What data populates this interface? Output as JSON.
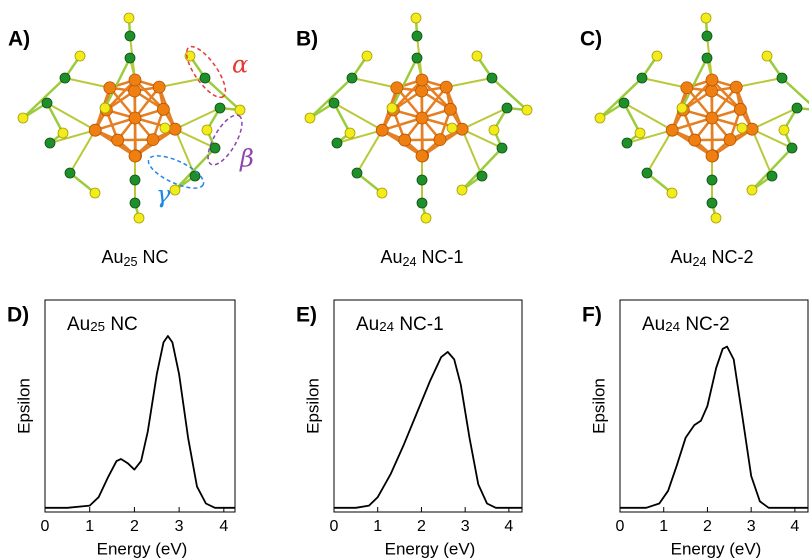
{
  "panels": [
    {
      "label": "A)",
      "caption": {
        "base": "Au",
        "sub": "25",
        "rest": " NC"
      }
    },
    {
      "label": "B)",
      "caption": {
        "base": "Au",
        "sub": "24",
        "rest": " NC-1"
      }
    },
    {
      "label": "C)",
      "caption": {
        "base": "Au",
        "sub": "24",
        "rest": " NC-2"
      }
    }
  ],
  "annotations": [
    "α",
    "β",
    "γ"
  ],
  "chart_data": [
    {
      "type": "line",
      "label": "D)",
      "title": {
        "base": "Au",
        "sub": "25",
        "rest": " NC"
      },
      "xlabel": "Energy (eV)",
      "ylabel": "Epsilon",
      "xlim": [
        0,
        4.25
      ],
      "xticks": [
        0,
        1,
        2,
        3,
        4
      ],
      "ylim": [
        0,
        1
      ],
      "color": "#000000",
      "x": [
        0,
        0.5,
        1.0,
        1.2,
        1.4,
        1.6,
        1.7,
        1.85,
        2.0,
        2.15,
        2.3,
        2.5,
        2.65,
        2.75,
        2.85,
        3.0,
        3.2,
        3.4,
        3.6,
        3.8,
        4.25
      ],
      "values": [
        0.02,
        0.02,
        0.03,
        0.07,
        0.16,
        0.24,
        0.25,
        0.23,
        0.2,
        0.24,
        0.38,
        0.65,
        0.8,
        0.83,
        0.8,
        0.65,
        0.35,
        0.12,
        0.04,
        0.02,
        0.02
      ]
    },
    {
      "type": "line",
      "label": "E)",
      "title": {
        "base": "Au",
        "sub": "24",
        "rest": " NC-1"
      },
      "xlabel": "Energy (eV)",
      "ylabel": "Epsilon",
      "xlim": [
        0,
        4.3
      ],
      "xticks": [
        0,
        1,
        2,
        3,
        4
      ],
      "ylim": [
        0,
        1
      ],
      "color": "#000000",
      "x": [
        0,
        0.5,
        0.8,
        1.0,
        1.3,
        1.6,
        1.9,
        2.2,
        2.45,
        2.6,
        2.75,
        2.9,
        3.1,
        3.3,
        3.5,
        3.7,
        4.3
      ],
      "values": [
        0.02,
        0.02,
        0.03,
        0.07,
        0.18,
        0.32,
        0.47,
        0.62,
        0.73,
        0.755,
        0.72,
        0.6,
        0.35,
        0.13,
        0.04,
        0.02,
        0.02
      ]
    },
    {
      "type": "line",
      "label": "F)",
      "title": {
        "base": "Au",
        "sub": "24",
        "rest": " NC-2"
      },
      "xlabel": "Energy (eV)",
      "ylabel": "Epsilon",
      "xlim": [
        0,
        4.3
      ],
      "xticks": [
        0,
        1,
        2,
        3,
        4
      ],
      "ylim": [
        0,
        1
      ],
      "color": "#000000",
      "x": [
        0,
        0.6,
        0.9,
        1.1,
        1.3,
        1.5,
        1.7,
        1.85,
        2.0,
        2.2,
        2.35,
        2.45,
        2.6,
        2.8,
        3.0,
        3.2,
        3.4,
        4.3
      ],
      "values": [
        0.02,
        0.02,
        0.04,
        0.1,
        0.22,
        0.35,
        0.41,
        0.43,
        0.5,
        0.68,
        0.77,
        0.78,
        0.72,
        0.45,
        0.17,
        0.05,
        0.02,
        0.02
      ]
    }
  ]
}
